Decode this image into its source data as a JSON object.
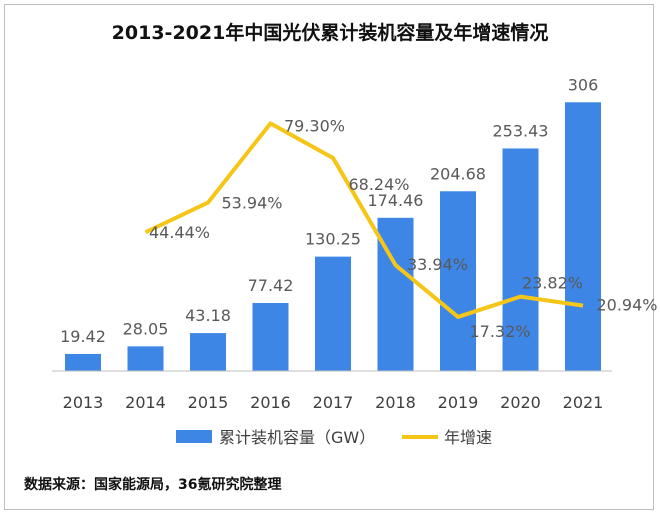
{
  "chart_data": {
    "type": "bar+line",
    "title": "2013-2021年中国光伏累计装机容量及年增速情况",
    "categories": [
      "2013",
      "2014",
      "2015",
      "2016",
      "2017",
      "2018",
      "2019",
      "2020",
      "2021"
    ],
    "series": [
      {
        "name": "累计装机容量（GW）",
        "type": "bar",
        "color": "#3d86e6",
        "values": [
          19.42,
          28.05,
          43.18,
          77.42,
          130.25,
          174.46,
          204.68,
          253.43,
          306
        ],
        "labels": [
          "19.42",
          "28.05",
          "43.18",
          "77.42",
          "130.25",
          "174.46",
          "204.68",
          "253.43",
          "306"
        ]
      },
      {
        "name": "年增速",
        "type": "line",
        "color": "#f5c518",
        "values": [
          null,
          44.44,
          53.94,
          79.3,
          68.24,
          33.94,
          17.32,
          23.82,
          20.94
        ],
        "labels": [
          null,
          "44.44%",
          "53.94%",
          "79.30%",
          "68.24%",
          "33.94%",
          "17.32%",
          "23.82%",
          "20.94%"
        ]
      }
    ],
    "ylim_bar": [
      0,
      320
    ],
    "ylim_line": [
      0,
      90
    ],
    "grid": false,
    "legend_position": "bottom"
  },
  "source_note": "数据来源：国家能源局，36氪研究院整理"
}
